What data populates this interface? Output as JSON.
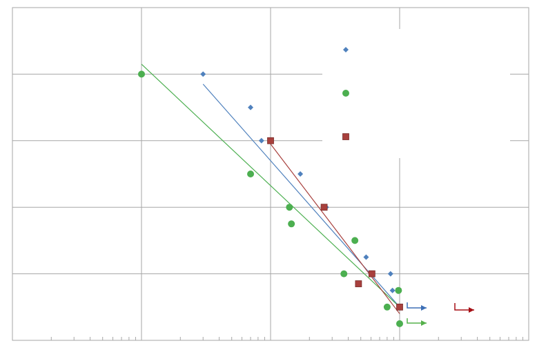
{
  "chart_data": {
    "type": "scatter",
    "x_scale": "log",
    "xlim": [
      0.01,
      100
    ],
    "ylim": [
      0,
      5
    ],
    "grid": true,
    "legend_position": "top-right",
    "series": [
      {
        "marker": "diamond",
        "color": "#4f81bd",
        "points": [
          [
            0.3,
            4
          ],
          [
            0.7,
            3.5
          ],
          [
            0.85,
            3
          ],
          [
            1.7,
            2.5
          ],
          [
            2.7,
            2
          ],
          [
            4.5,
            1.5
          ],
          [
            5.5,
            1.25
          ],
          [
            8.5,
            1
          ],
          [
            8.8,
            0.75
          ],
          [
            10,
            0.5
          ]
        ],
        "trendline": [
          [
            0.3,
            3.85
          ],
          [
            10,
            0.5
          ]
        ]
      },
      {
        "marker": "circle",
        "color": "#4caf50",
        "points": [
          [
            0.1,
            4
          ],
          [
            0.7,
            2.5
          ],
          [
            1.4,
            2
          ],
          [
            1.45,
            1.75
          ],
          [
            4.5,
            1.5
          ],
          [
            3.7,
            1
          ],
          [
            8,
            0.5
          ],
          [
            9.8,
            0.75
          ],
          [
            10,
            0.25
          ]
        ],
        "trendline": [
          [
            0.1,
            4.15
          ],
          [
            10,
            0.5
          ]
        ]
      },
      {
        "marker": "square",
        "color": "#a8403d",
        "points": [
          [
            1,
            3
          ],
          [
            2.6,
            2
          ],
          [
            6.1,
            1
          ],
          [
            4.8,
            0.85
          ],
          [
            10,
            0.5
          ]
        ],
        "trendline": [
          [
            1,
            2.95
          ],
          [
            10,
            0.4
          ]
        ]
      }
    ],
    "arrows": [
      {
        "color": "#3d6fb6"
      },
      {
        "color": "#55b04a"
      },
      {
        "color": "#a50f15"
      }
    ]
  }
}
